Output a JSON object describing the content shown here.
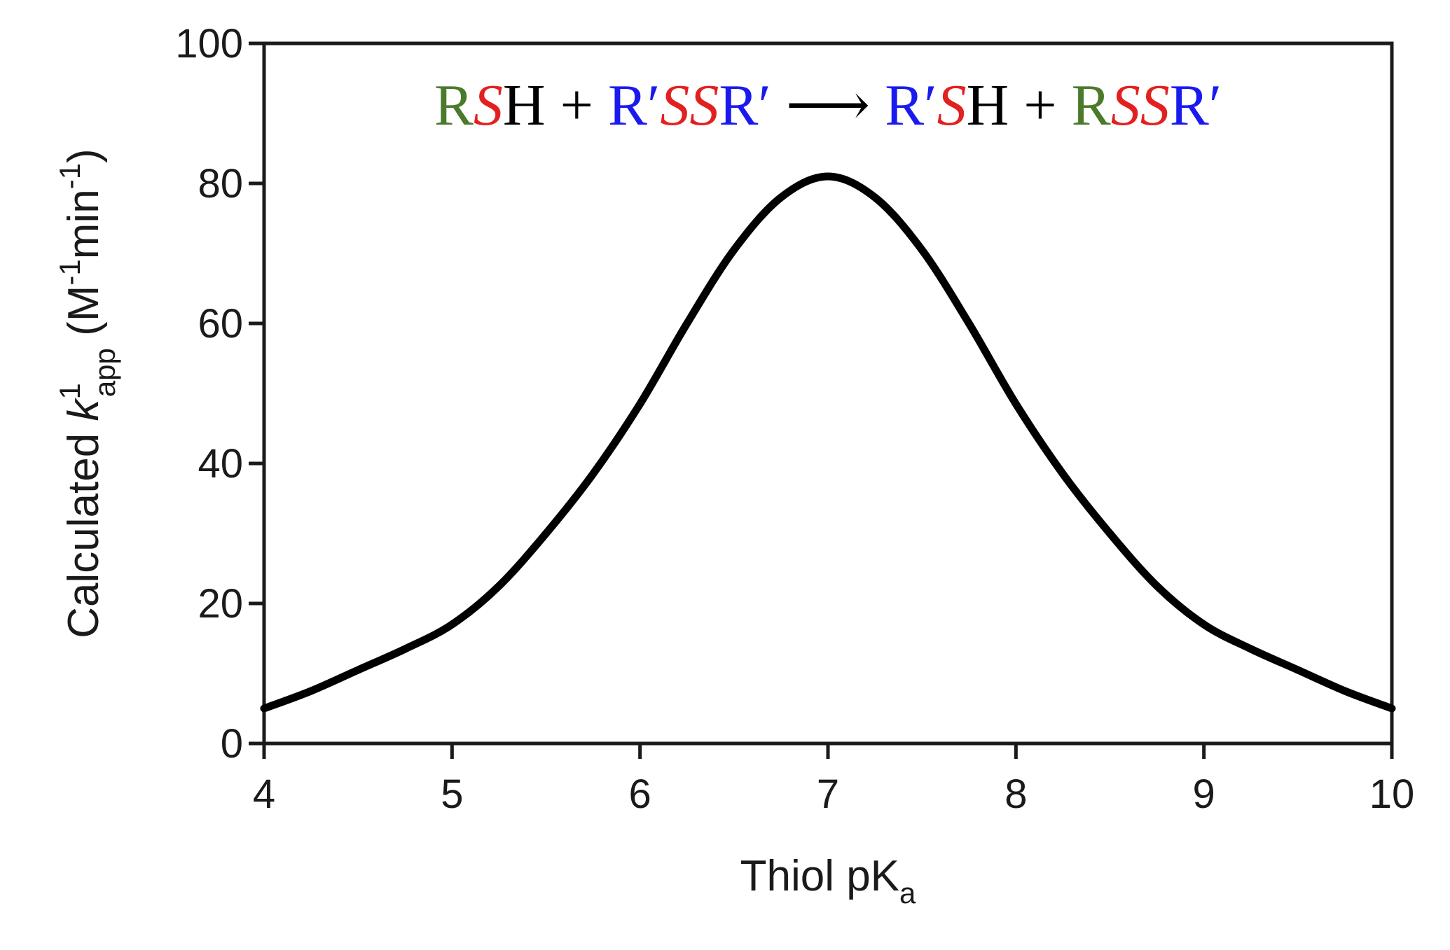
{
  "chart_data": {
    "type": "line",
    "title": "",
    "xlabel": {
      "main": "Thiol pK",
      "sub": "a"
    },
    "ylabel": {
      "prefix": "Calculated ",
      "k": "k",
      "k_sup": "1",
      "k_sub": "app",
      "unit_open": "  (M",
      "unit_sup1": "-1",
      "unit_mid": "min",
      "unit_sup2": "-1",
      "unit_close": ")"
    },
    "xlim": [
      4,
      10
    ],
    "ylim": [
      0,
      100
    ],
    "x_ticks": [
      4,
      5,
      6,
      7,
      8,
      9,
      10
    ],
    "y_ticks": [
      0,
      20,
      40,
      60,
      80,
      100
    ],
    "grid": false,
    "series": [
      {
        "color": "#000000",
        "x": [
          4.0,
          4.25,
          4.5,
          4.75,
          5.0,
          5.25,
          5.5,
          5.75,
          6.0,
          6.25,
          6.5,
          6.75,
          7.0,
          7.25,
          7.5,
          7.75,
          8.0,
          8.25,
          8.5,
          8.75,
          9.0,
          9.25,
          9.5,
          9.75,
          10.0
        ],
        "y": [
          5.0,
          7.5,
          10.5,
          13.5,
          17.0,
          22.5,
          30.0,
          38.5,
          48.5,
          60.0,
          70.5,
          78.0,
          81.0,
          78.0,
          70.5,
          60.0,
          48.5,
          38.5,
          30.0,
          22.5,
          17.0,
          13.5,
          10.5,
          7.5,
          5.0
        ]
      }
    ],
    "annotation": {
      "tokens": [
        {
          "text": "R",
          "color": "#4a7a2a",
          "italic": false
        },
        {
          "text": "S",
          "color": "#e32020",
          "italic": true
        },
        {
          "text": "H + ",
          "color": "#000000",
          "italic": false
        },
        {
          "text": "R′",
          "color": "#1a1aee",
          "italic": false
        },
        {
          "text": "SS",
          "color": "#e32020",
          "italic": true
        },
        {
          "text": "R′",
          "color": "#1a1aee",
          "italic": false
        },
        {
          "text": " ⟶ ",
          "color": "#000000",
          "italic": false
        },
        {
          "text": "R′",
          "color": "#1a1aee",
          "italic": false
        },
        {
          "text": "S",
          "color": "#e32020",
          "italic": true
        },
        {
          "text": "H + ",
          "color": "#000000",
          "italic": false
        },
        {
          "text": "R",
          "color": "#4a7a2a",
          "italic": false
        },
        {
          "text": "SS",
          "color": "#e32020",
          "italic": true
        },
        {
          "text": "R′",
          "color": "#1a1aee",
          "italic": false
        }
      ]
    }
  }
}
